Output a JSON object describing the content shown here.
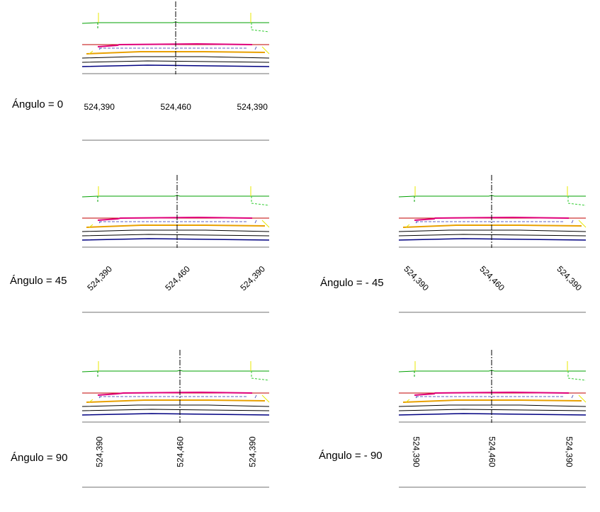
{
  "panels": [
    {
      "label": "Ángulo = 0",
      "values": [
        "524,390",
        "524,460",
        "524,390"
      ],
      "angle": 0
    },
    {
      "label": "Ángulo = 45",
      "values": [
        "524,390",
        "524,460",
        "524,390"
      ],
      "angle": -45
    },
    {
      "label": "Ángulo = - 45",
      "values": [
        "524,390",
        "524,460",
        "524,390"
      ],
      "angle": 45
    },
    {
      "label": "Ángulo = 90",
      "values": [
        "524,390",
        "524,460",
        "524,390"
      ],
      "angle": -90
    },
    {
      "label": "Ángulo = - 90",
      "values": [
        "524,390",
        "524,460",
        "524,390"
      ],
      "angle": 90
    }
  ],
  "colors": {
    "green": "#00a000",
    "green_dashed": "#33cc33",
    "yellow": "#e8e800",
    "red": "#c00000",
    "magenta": "#e0007a",
    "blue_dashed": "#6060c0",
    "orange": "#e8a000",
    "black": "#000000",
    "navy": "#000080",
    "gray": "#707070"
  }
}
